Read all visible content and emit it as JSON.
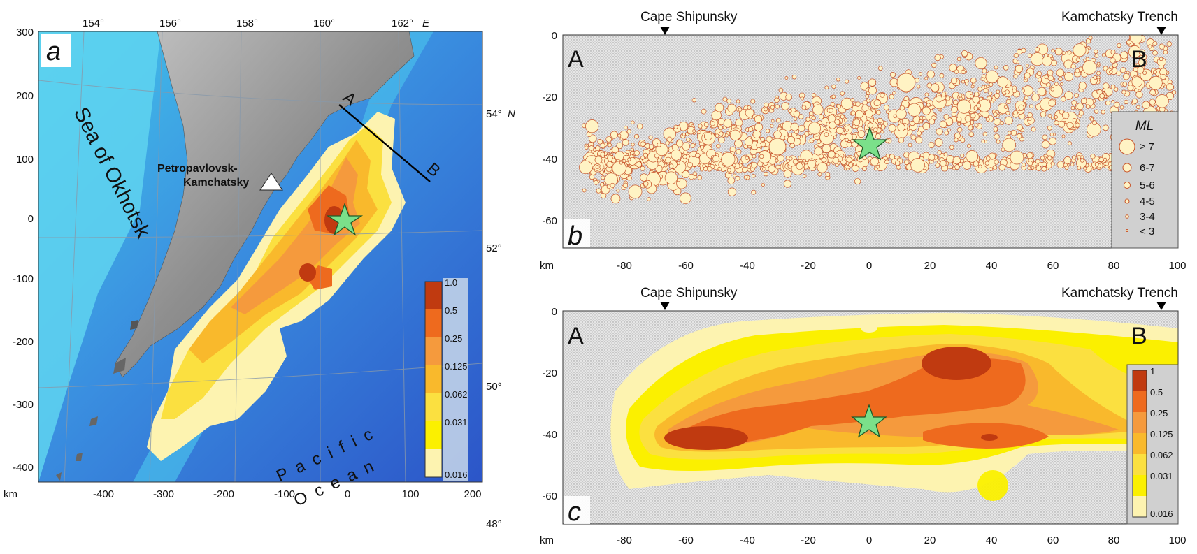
{
  "panel_a": {
    "label": "a",
    "lon_ticks": [
      "154°",
      "156°",
      "158°",
      "160°",
      "162°"
    ],
    "lon_suffix": "E",
    "lat_ticks": [
      "54°",
      "52°",
      "50°",
      "48°"
    ],
    "lat_suffix": "N",
    "y_km_ticks": [
      "300",
      "200",
      "100",
      "0",
      "-100",
      "-200",
      "-300",
      "-400"
    ],
    "x_km_ticks": [
      "-400",
      "-300",
      "-200",
      "-100",
      "0",
      "100",
      "200"
    ],
    "km_label": "km",
    "sea_label": "Sea of Okhotsk",
    "city_line1": "Petropavlovsk-",
    "city_line2": "Kamchatsky",
    "profile_start": "A",
    "profile_end": "B",
    "ocean_line1": "Pacific",
    "ocean_line2": "Ocean",
    "colorbar": [
      "1.0",
      "0.5",
      "0.25",
      "0.125",
      "0.062",
      "0.031",
      "0.016"
    ],
    "colors": {
      "ocean_deep": "#2f5fd0",
      "ocean_shallow": "#41c8ec",
      "land": "#9a9a9a"
    }
  },
  "panel_b": {
    "label": "b",
    "left_marker": "Cape Shipunsky",
    "right_marker": "Kamchatsky Trench",
    "end_a": "A",
    "end_b": "B",
    "x_ticks": [
      "-80",
      "-60",
      "-40",
      "-20",
      "0",
      "20",
      "40",
      "60",
      "80",
      "100"
    ],
    "y_ticks": [
      "0",
      "-20",
      "-40",
      "-60"
    ],
    "km_label": "km",
    "legend_title": "ML",
    "legend": [
      "≥ 7",
      "6-7",
      "5-6",
      "4-5",
      "3-4",
      "< 3"
    ],
    "colors": {
      "event_fill": "#fff3c4",
      "event_stroke": "#c8542a"
    }
  },
  "panel_c": {
    "label": "c",
    "left_marker": "Cape Shipunsky",
    "right_marker": "Kamchatsky Trench",
    "end_a": "A",
    "end_b": "B",
    "x_ticks": [
      "-80",
      "-60",
      "-40",
      "-20",
      "0",
      "20",
      "40",
      "60",
      "80",
      "100"
    ],
    "y_ticks": [
      "0",
      "-20",
      "-40",
      "-60"
    ],
    "km_label": "km",
    "colorbar": [
      "1",
      "0.5",
      "0.25",
      "0.125",
      "0.062",
      "0.031",
      "0.016"
    ]
  }
}
